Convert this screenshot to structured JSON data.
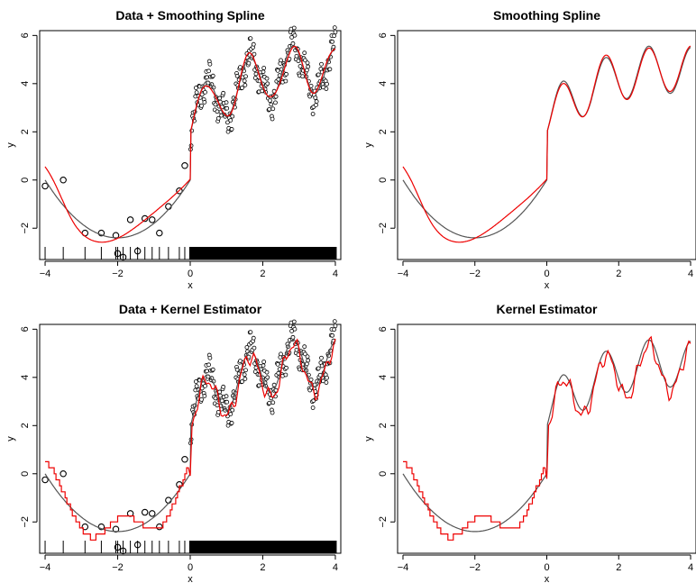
{
  "chart_data": [
    {
      "type": "scatter",
      "title": "Data + Smoothing Spline",
      "xlabel": "x",
      "ylabel": "y",
      "xlim": [
        -4,
        4
      ],
      "ylim": [
        -3.3,
        6.2
      ],
      "xticks": [
        -4,
        -2,
        0,
        2,
        4
      ],
      "yticks": [
        -2,
        0,
        2,
        4,
        6
      ],
      "show_points": true,
      "fit_type": "spline",
      "series": [
        {
          "name": "data",
          "color": "#000000",
          "points": [
            [
              -4.0,
              -0.25
            ],
            [
              -3.5,
              0.0
            ],
            [
              -2.9,
              -2.2
            ],
            [
              -2.45,
              -2.2
            ],
            [
              -2.05,
              -2.3
            ],
            [
              -2.0,
              -3.05
            ],
            [
              -1.85,
              -3.2
            ],
            [
              -1.65,
              -1.65
            ],
            [
              -1.45,
              -2.95
            ],
            [
              -1.25,
              -1.6
            ],
            [
              -1.05,
              -1.65
            ],
            [
              -0.85,
              -2.2
            ],
            [
              -0.6,
              -1.1
            ],
            [
              -0.3,
              -0.45
            ],
            [
              -0.15,
              0.6
            ]
          ]
        },
        {
          "name": "true_function",
          "color": "#555555"
        },
        {
          "name": "fit",
          "color": "#ee0000"
        }
      ]
    },
    {
      "type": "line",
      "title": "Smoothing Spline",
      "xlabel": "x",
      "ylabel": "y",
      "xlim": [
        -4,
        4
      ],
      "ylim": [
        -3.3,
        6.2
      ],
      "xticks": [
        -4,
        -2,
        0,
        2,
        4
      ],
      "yticks": [
        -2,
        0,
        2,
        4,
        6
      ],
      "show_points": false,
      "fit_type": "spline",
      "series": [
        {
          "name": "true_function",
          "color": "#555555"
        },
        {
          "name": "fit",
          "color": "#ee0000"
        }
      ]
    },
    {
      "type": "scatter",
      "title": "Data + Kernel Estimator",
      "xlabel": "x",
      "ylabel": "y",
      "xlim": [
        -4,
        4
      ],
      "ylim": [
        -3.3,
        6.2
      ],
      "xticks": [
        -4,
        -2,
        0,
        2,
        4
      ],
      "yticks": [
        -2,
        0,
        2,
        4,
        6
      ],
      "show_points": true,
      "fit_type": "kernel",
      "series": [
        {
          "name": "data",
          "color": "#000000",
          "points": [
            [
              -4.0,
              -0.25
            ],
            [
              -3.5,
              0.0
            ],
            [
              -2.9,
              -2.2
            ],
            [
              -2.45,
              -2.2
            ],
            [
              -2.05,
              -2.3
            ],
            [
              -2.0,
              -3.05
            ],
            [
              -1.85,
              -3.2
            ],
            [
              -1.65,
              -1.65
            ],
            [
              -1.45,
              -2.95
            ],
            [
              -1.25,
              -1.6
            ],
            [
              -1.05,
              -1.65
            ],
            [
              -0.85,
              -2.2
            ],
            [
              -0.6,
              -1.1
            ],
            [
              -0.3,
              -0.45
            ],
            [
              -0.15,
              0.6
            ]
          ]
        },
        {
          "name": "true_function",
          "color": "#555555"
        },
        {
          "name": "fit",
          "color": "#ee0000"
        }
      ]
    },
    {
      "type": "line",
      "title": "Kernel Estimator",
      "xlabel": "x",
      "ylabel": "y",
      "xlim": [
        -4,
        4
      ],
      "ylim": [
        -3.3,
        6.2
      ],
      "xticks": [
        -4,
        -2,
        0,
        2,
        4
      ],
      "yticks": [
        -2,
        0,
        2,
        4,
        6
      ],
      "show_points": false,
      "fit_type": "kernel",
      "series": [
        {
          "name": "true_function",
          "color": "#555555"
        },
        {
          "name": "fit",
          "color": "#ee0000"
        }
      ]
    }
  ]
}
